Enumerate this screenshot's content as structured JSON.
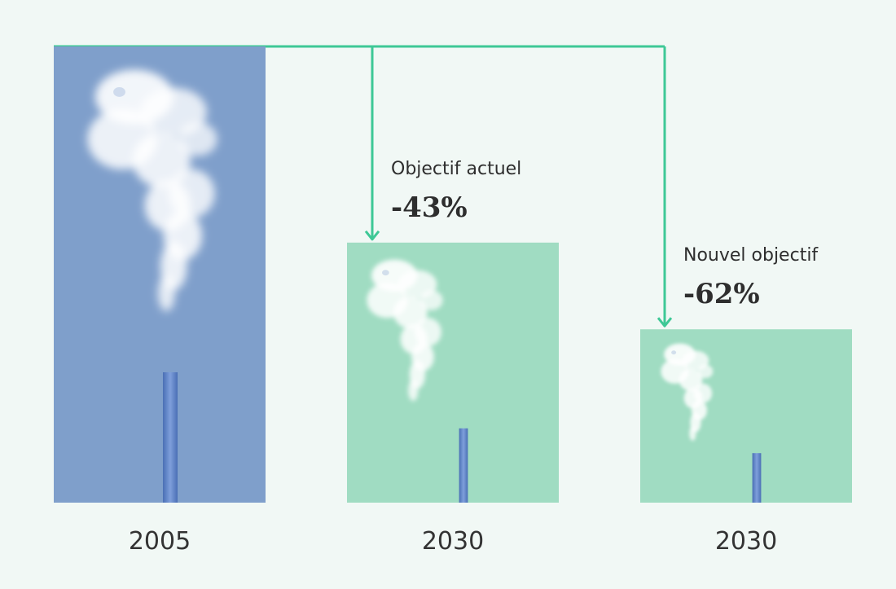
{
  "colors": {
    "background": "#f1f8f5",
    "baseline_bar": "#7f9fcb",
    "target_bar": "#a0dcc2",
    "connector": "#3ec896",
    "chimney": "#5c82c4",
    "smoke": "#ffffff"
  },
  "chart_data": {
    "type": "bar",
    "title": "",
    "xlabel": "",
    "ylabel": "",
    "categories": [
      "2005",
      "2030",
      "2030"
    ],
    "values": [
      100,
      57,
      38
    ],
    "annotations": [
      null,
      {
        "label": "Objectif actuel",
        "value": "-43%"
      },
      {
        "label": "Nouvel objectif",
        "value": "-62%"
      }
    ],
    "ylim": [
      0,
      100
    ],
    "grid": false,
    "legend": "none"
  }
}
